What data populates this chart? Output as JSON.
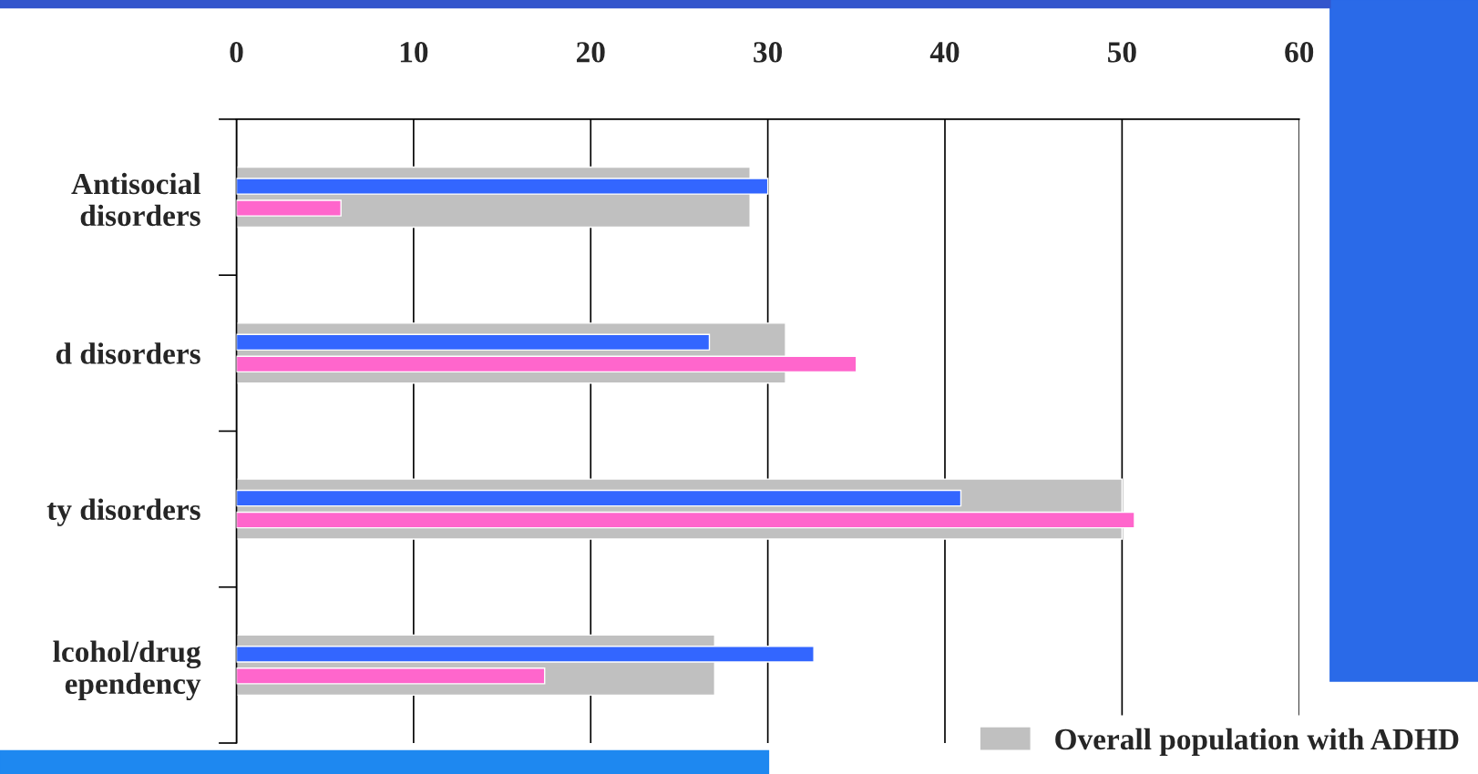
{
  "chart_data": {
    "type": "bar",
    "orientation": "horizontal",
    "categories": [
      "Antisocial\ndisorders",
      "d disorders",
      "ty disorders",
      "lcohol/drug\nependency"
    ],
    "series": [
      {
        "name": "Overall population with ADHD",
        "color": "#c0c0c0",
        "values": [
          29,
          31,
          50,
          27
        ]
      },
      {
        "color": "#3366ff",
        "values": [
          30,
          26.7,
          40.9,
          32.6
        ]
      },
      {
        "color": "#ff66cc",
        "values": [
          5.9,
          35,
          50.7,
          17.4
        ]
      }
    ],
    "xlim": [
      0,
      60
    ],
    "xticks": [
      0,
      10,
      20,
      30,
      40,
      50,
      60
    ],
    "grid": "x",
    "legend": "bottom right"
  }
}
